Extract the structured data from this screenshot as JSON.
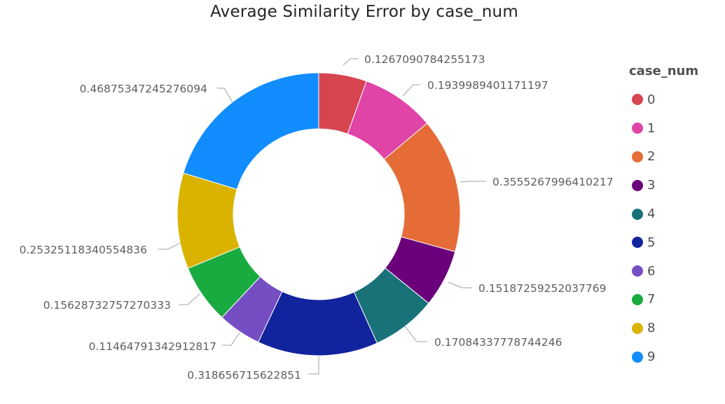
{
  "chart_data": {
    "type": "pie",
    "variant": "donut",
    "title": "Average Similarity Error by case_num",
    "legend_title": "case_num",
    "legend_position": "right",
    "categories": [
      "0",
      "1",
      "2",
      "3",
      "4",
      "5",
      "6",
      "7",
      "8",
      "9"
    ],
    "values": [
      0.1267090784255173,
      0.1939989401171197,
      0.3555267996410217,
      0.15187259252037769,
      0.17084337778744246,
      0.318656715622851,
      0.11464791342912817,
      0.15628732757270333,
      0.25325118340554836,
      0.46875347245276094
    ],
    "labels": [
      "0.1267090784255173",
      "0.1939989401171197",
      "0.3555267996410217",
      "0.15187259252037769",
      "0.17084337778744246",
      "0.318656715622851",
      "0.11464791342912817",
      "0.15628732757270333",
      "0.25325118340554836",
      "0.46875347245276094"
    ],
    "colors": [
      "#D64550",
      "#E044A7",
      "#E66C37",
      "#6B007B",
      "#197278",
      "#12239E",
      "#744EC2",
      "#1AAB40",
      "#D9B300",
      "#118DFF"
    ]
  }
}
